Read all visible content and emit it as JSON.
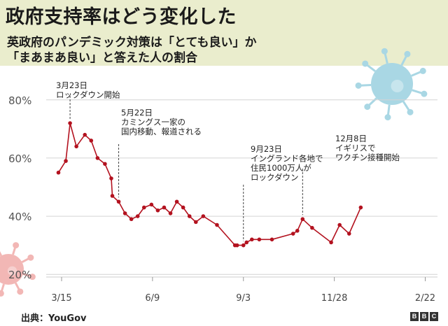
{
  "header": {
    "title": "政府支持率はどう変化した",
    "subtitle_line1": "英政府のパンデミック対策は「とても良い」か",
    "subtitle_line2": "「まあまあ良い」と答えた人の割合"
  },
  "footer": {
    "source": "出典：YouGov",
    "logo_letters": [
      "B",
      "B",
      "C"
    ]
  },
  "colors": {
    "header_bg": "#eaedcd",
    "line": "#b3121f",
    "grid": "#d4d4d4",
    "virus_blue": "#a9d7e4",
    "virus_pink": "#f2b7b5"
  },
  "chart_data": {
    "type": "line",
    "title": "政府支持率はどう変化した",
    "xlabel": "",
    "ylabel": "",
    "ylim": [
      15,
      85
    ],
    "x_range": [
      0,
      345
    ],
    "y_ticks": [
      {
        "value": 80,
        "label": "80%"
      },
      {
        "value": 60,
        "label": "60%"
      },
      {
        "value": 40,
        "label": "40%"
      },
      {
        "value": 20,
        "label": "20%"
      }
    ],
    "x_ticks": [
      {
        "value": 0,
        "label": "3/15"
      },
      {
        "value": 86,
        "label": "6/9"
      },
      {
        "value": 172,
        "label": "9/3"
      },
      {
        "value": 258,
        "label": "11/28"
      },
      {
        "value": 344,
        "label": "2/22"
      }
    ],
    "series": [
      {
        "name": "支持率",
        "x": [
          -3,
          4,
          8,
          14,
          22,
          28,
          34,
          41,
          47,
          48,
          54,
          60,
          66,
          72,
          78,
          85,
          91,
          97,
          103,
          109,
          115,
          121,
          127,
          134,
          147,
          164,
          166,
          172,
          175,
          180,
          187,
          199,
          219,
          223,
          228,
          237,
          255,
          263,
          272,
          283
        ],
        "values": [
          55,
          59,
          72,
          64,
          68,
          66,
          60,
          58,
          53,
          47,
          45,
          41,
          39,
          40,
          43,
          44,
          42,
          43,
          41,
          45,
          43,
          40,
          38,
          40,
          37,
          30,
          30,
          30,
          31,
          32,
          32,
          32,
          34,
          35,
          39,
          36,
          31,
          37,
          34,
          43
        ]
      }
    ],
    "annotations": [
      {
        "x": 8,
        "y": 72,
        "lines": [
          "3月23日",
          "ロックダウン開始"
        ]
      },
      {
        "x": 54,
        "y": 45,
        "lines": [
          "5月22日",
          "カミングス一家の",
          "国内移動、報道される"
        ]
      },
      {
        "x": 172,
        "y": 30,
        "lines": [
          "9月23日",
          "イングランド各地で",
          "住民1000万人が",
          "ロックダウン"
        ]
      },
      {
        "x": 228,
        "y": 39,
        "lines": [
          "12月8日",
          "イギリスで",
          "ワクチン接種開始"
        ]
      }
    ]
  }
}
